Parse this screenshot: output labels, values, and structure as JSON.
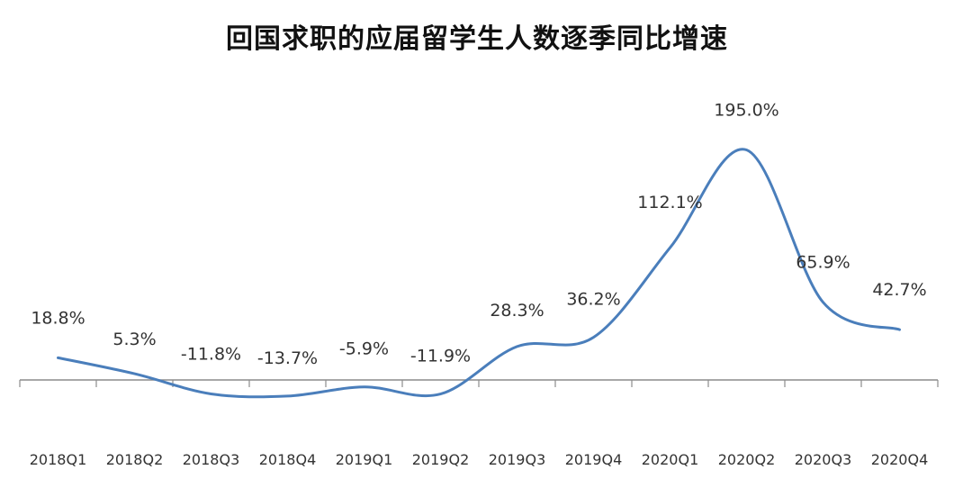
{
  "chart_data": {
    "type": "line",
    "title": "回国求职的应届留学生人数逐季同比增速",
    "xlabel": "",
    "ylabel": "",
    "categories": [
      "2018Q1",
      "2018Q2",
      "2018Q3",
      "2018Q4",
      "2019Q1",
      "2019Q2",
      "2019Q3",
      "2019Q4",
      "2020Q1",
      "2020Q2",
      "2020Q3",
      "2020Q4"
    ],
    "series": [
      {
        "values": [
          18.8,
          5.3,
          -11.8,
          -13.7,
          -5.9,
          -11.9,
          28.3,
          36.2,
          112.1,
          195.0,
          65.9,
          42.7
        ],
        "labels": [
          "18.8%",
          "5.3%",
          "-11.8%",
          "-13.7%",
          "-5.9%",
          "-11.9%",
          "28.3%",
          "36.2%",
          "112.1%",
          "195.0%",
          "65.9%",
          "42.7%"
        ],
        "color": "#4a7ebb"
      }
    ],
    "ylim": [
      -30,
      230
    ],
    "grid": false,
    "legend": "none"
  }
}
